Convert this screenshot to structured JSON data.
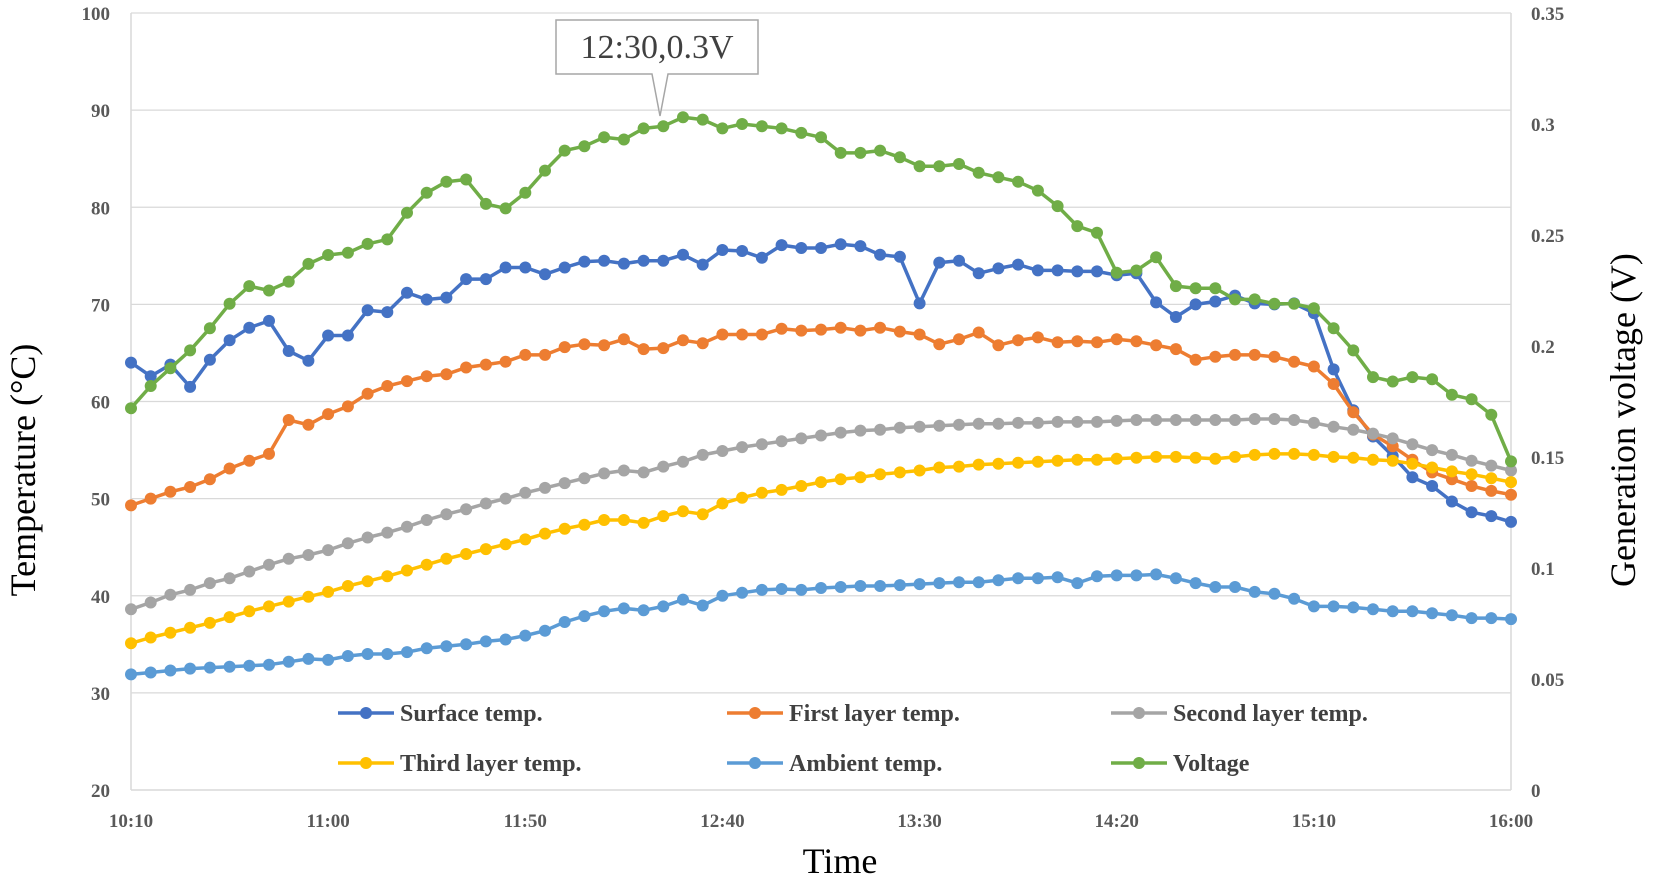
{
  "chart_data": {
    "type": "line",
    "xlabel": "Time",
    "ylabel_left": "Temperature (°C)",
    "ylabel_right": "Generation voltage (V)",
    "ylim_left": [
      20,
      100
    ],
    "ylim_right": [
      0,
      0.35
    ],
    "yticks_left": [
      "20",
      "30",
      "40",
      "50",
      "60",
      "70",
      "80",
      "90",
      "100"
    ],
    "yticks_right": [
      "0",
      "0.05",
      "0.1",
      "0.15",
      "0.2",
      "0.25",
      "0.3",
      "0.35"
    ],
    "x_ticks": [
      "10:10",
      "11:00",
      "11:50",
      "12:40",
      "13:30",
      "14:20",
      "15:10",
      "16:00"
    ],
    "x_range": [
      "10:10",
      "16:00"
    ],
    "grid": true,
    "legend_position": "bottom-inside",
    "annotation": {
      "text": "12:30,0.3V",
      "x": "12:30",
      "y": 0.3
    },
    "series": [
      {
        "name": "Surface temp.",
        "color": "#4472C4",
        "axis": "left",
        "values": [
          64,
          62.6,
          63.8,
          61.5,
          64.3,
          66.3,
          67.6,
          68.3,
          65.2,
          64.2,
          66.8,
          66.8,
          69.4,
          69.2,
          71.2,
          70.5,
          70.7,
          72.6,
          72.6,
          73.8,
          73.8,
          73.1,
          73.8,
          74.4,
          74.5,
          74.2,
          74.5,
          74.5,
          75.1,
          74.1,
          75.6,
          75.5,
          74.8,
          76.1,
          75.8,
          75.8,
          76.2,
          76,
          75.1,
          74.9,
          70.1,
          74.3,
          74.5,
          73.2,
          73.7,
          74.1,
          73.5,
          73.5,
          73.4,
          73.4,
          73,
          73.2,
          70.2,
          68.7,
          70,
          70.3,
          70.9,
          70.1,
          70,
          70.1,
          69.1,
          63.3,
          59.1,
          56.4,
          54.4,
          52.2,
          51.3,
          49.7,
          48.6,
          48.2,
          47.6
        ]
      },
      {
        "name": "First layer temp.",
        "color": "#ED7D31",
        "axis": "left",
        "values": [
          49.3,
          50,
          50.7,
          51.2,
          52,
          53.1,
          53.9,
          54.6,
          58.1,
          57.6,
          58.7,
          59.5,
          60.8,
          61.6,
          62.1,
          62.6,
          62.8,
          63.5,
          63.8,
          64.1,
          64.8,
          64.8,
          65.6,
          65.9,
          65.8,
          66.4,
          65.4,
          65.5,
          66.3,
          66,
          66.9,
          66.9,
          66.9,
          67.5,
          67.3,
          67.4,
          67.6,
          67.3,
          67.6,
          67.2,
          66.9,
          65.9,
          66.4,
          67.1,
          65.8,
          66.3,
          66.6,
          66.1,
          66.2,
          66.1,
          66.4,
          66.2,
          65.8,
          65.4,
          64.3,
          64.6,
          64.8,
          64.8,
          64.6,
          64.1,
          63.6,
          61.8,
          58.9,
          56.6,
          55.4,
          54,
          52.7,
          52,
          51.3,
          50.8,
          50.4
        ]
      },
      {
        "name": "Second layer temp.",
        "color": "#A5A5A5",
        "axis": "left",
        "values": [
          38.6,
          39.3,
          40.1,
          40.6,
          41.3,
          41.8,
          42.5,
          43.2,
          43.8,
          44.2,
          44.7,
          45.4,
          46,
          46.5,
          47.1,
          47.8,
          48.4,
          48.9,
          49.5,
          50,
          50.6,
          51.1,
          51.6,
          52.1,
          52.6,
          52.9,
          52.7,
          53.3,
          53.8,
          54.5,
          54.9,
          55.3,
          55.6,
          55.9,
          56.2,
          56.5,
          56.8,
          57,
          57.1,
          57.3,
          57.4,
          57.5,
          57.6,
          57.7,
          57.7,
          57.8,
          57.8,
          57.9,
          57.9,
          57.9,
          58,
          58.1,
          58.1,
          58.1,
          58.1,
          58.1,
          58.1,
          58.2,
          58.2,
          58.1,
          57.8,
          57.4,
          57.1,
          56.7,
          56.2,
          55.6,
          55,
          54.5,
          53.9,
          53.4,
          52.9
        ]
      },
      {
        "name": "Third layer temp.",
        "color": "#FFC000",
        "axis": "left",
        "values": [
          35.1,
          35.7,
          36.2,
          36.7,
          37.2,
          37.8,
          38.4,
          38.9,
          39.4,
          39.9,
          40.4,
          41,
          41.5,
          42,
          42.6,
          43.2,
          43.8,
          44.3,
          44.8,
          45.3,
          45.8,
          46.4,
          46.9,
          47.3,
          47.8,
          47.8,
          47.5,
          48.2,
          48.7,
          48.4,
          49.5,
          50.1,
          50.6,
          50.9,
          51.3,
          51.7,
          52,
          52.2,
          52.5,
          52.7,
          52.9,
          53.2,
          53.3,
          53.5,
          53.6,
          53.7,
          53.8,
          53.9,
          54,
          54,
          54.1,
          54.2,
          54.3,
          54.3,
          54.2,
          54.1,
          54.3,
          54.5,
          54.6,
          54.6,
          54.5,
          54.3,
          54.2,
          54,
          53.9,
          53.6,
          53.2,
          52.8,
          52.5,
          52.1,
          51.7
        ]
      },
      {
        "name": "Ambient temp.",
        "color": "#5B9BD5",
        "axis": "left",
        "values": [
          31.9,
          32.1,
          32.3,
          32.5,
          32.6,
          32.7,
          32.8,
          32.9,
          33.2,
          33.5,
          33.4,
          33.8,
          34,
          34,
          34.2,
          34.6,
          34.8,
          35,
          35.3,
          35.5,
          35.9,
          36.4,
          37.3,
          37.9,
          38.4,
          38.7,
          38.5,
          38.9,
          39.6,
          39,
          40,
          40.3,
          40.6,
          40.7,
          40.6,
          40.8,
          40.9,
          41,
          41,
          41.1,
          41.2,
          41.3,
          41.4,
          41.4,
          41.6,
          41.8,
          41.8,
          41.9,
          41.3,
          42,
          42.1,
          42.1,
          42.2,
          41.8,
          41.3,
          40.9,
          40.9,
          40.4,
          40.2,
          39.7,
          38.9,
          38.9,
          38.8,
          38.6,
          38.4,
          38.4,
          38.2,
          38,
          37.7,
          37.7,
          37.6
        ]
      },
      {
        "name": "Voltage",
        "color": "#70AD47",
        "axis": "right",
        "values": [
          0.172,
          0.182,
          0.19,
          0.198,
          0.208,
          0.219,
          0.227,
          0.225,
          0.229,
          0.237,
          0.241,
          0.242,
          0.246,
          0.248,
          0.26,
          0.269,
          0.274,
          0.275,
          0.264,
          0.262,
          0.269,
          0.279,
          0.288,
          0.29,
          0.294,
          0.293,
          0.298,
          0.299,
          0.303,
          0.302,
          0.298,
          0.3,
          0.299,
          0.298,
          0.296,
          0.294,
          0.287,
          0.287,
          0.288,
          0.285,
          0.281,
          0.281,
          0.282,
          0.278,
          0.276,
          0.274,
          0.27,
          0.263,
          0.254,
          0.251,
          0.233,
          0.234,
          0.24,
          0.227,
          0.226,
          0.226,
          0.221,
          0.221,
          0.219,
          0.219,
          0.217,
          0.208,
          0.198,
          0.186,
          0.184,
          0.186,
          0.185,
          0.178,
          0.176,
          0.169,
          0.148
        ]
      }
    ]
  }
}
